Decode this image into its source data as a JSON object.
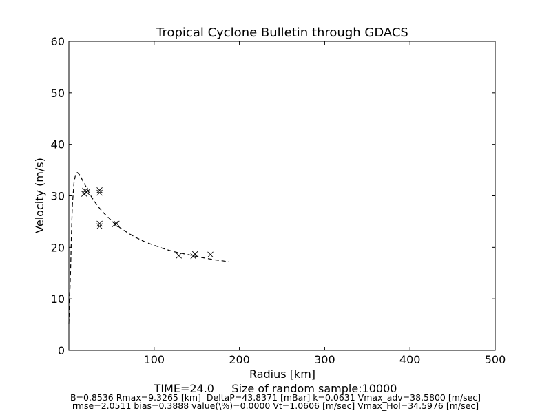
{
  "chart_data": {
    "type": "scatter",
    "title": "Tropical Cyclone Bulletin through GDACS",
    "xlabel": "Radius [km]",
    "ylabel": "Velocity (m/s)",
    "xlim": [
      0,
      500
    ],
    "ylim": [
      0,
      60
    ],
    "xticks": [
      100,
      200,
      300,
      400,
      500
    ],
    "yticks": [
      0,
      10,
      20,
      30,
      40,
      50,
      60
    ],
    "grid": false,
    "series": [
      {
        "kind": "markers",
        "marker": "x",
        "points": [
          [
            18,
            30.4
          ],
          [
            19,
            31.0
          ],
          [
            21,
            30.7
          ],
          [
            36,
            30.6
          ],
          [
            36,
            31.1
          ],
          [
            36,
            24.1
          ],
          [
            36,
            24.6
          ],
          [
            54,
            24.5
          ],
          [
            56,
            24.6
          ],
          [
            129,
            18.4
          ],
          [
            146,
            18.3
          ],
          [
            148,
            18.7
          ],
          [
            166,
            18.6
          ]
        ]
      },
      {
        "kind": "line",
        "style": "dashed",
        "points": [
          [
            0,
            5.2
          ],
          [
            1,
            10.5
          ],
          [
            2,
            15.5
          ],
          [
            3,
            22.5
          ],
          [
            4,
            28.0
          ],
          [
            6,
            32.5
          ],
          [
            8,
            34.3
          ],
          [
            10,
            34.5
          ],
          [
            13,
            34.0
          ],
          [
            16,
            33.0
          ],
          [
            20,
            31.8
          ],
          [
            25,
            30.2
          ],
          [
            30,
            28.9
          ],
          [
            35,
            27.8
          ],
          [
            40,
            26.8
          ],
          [
            50,
            25.2
          ],
          [
            60,
            23.8
          ],
          [
            70,
            22.7
          ],
          [
            80,
            21.8
          ],
          [
            90,
            21.0
          ],
          [
            100,
            20.4
          ],
          [
            110,
            19.8
          ],
          [
            120,
            19.3
          ],
          [
            130,
            18.9
          ],
          [
            140,
            18.6
          ],
          [
            150,
            18.2
          ],
          [
            160,
            17.9
          ],
          [
            170,
            17.6
          ],
          [
            180,
            17.4
          ],
          [
            188,
            17.2
          ]
        ]
      }
    ],
    "annotations": [
      "TIME=24.0     Size of random sample:10000",
      "B=0.8536 Rmax=9.3265 [km]  DeltaP=43.8371 [mBar] k=0.0631 Vmax_adv=38.5800 [m/sec]",
      "rmse=2.0511 bias=0.3888 value(\\%)=0.0000 Vt=1.0606 [m/sec] Vmax_Hol=34.5976 [m/sec]"
    ]
  }
}
